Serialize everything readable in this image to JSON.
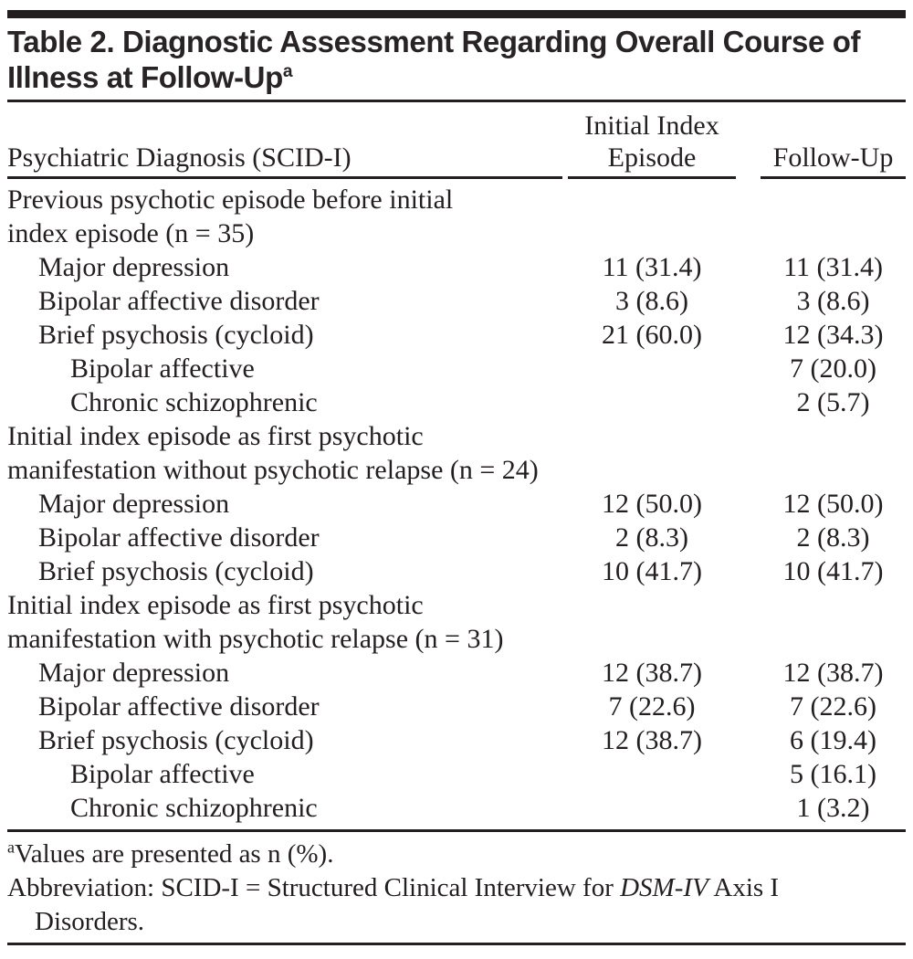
{
  "title": {
    "line1": "Table 2. Diagnostic Assessment Regarding Overall Course of",
    "line2": "Illness at Follow-Up",
    "superscript": "a"
  },
  "header": {
    "col1": "Psychiatric Diagnosis (SCID-I)",
    "col2_line1": "Initial Index",
    "col2_line2": "Episode",
    "col3": "Follow-Up"
  },
  "rows": [
    {
      "type": "section",
      "indent": 0,
      "label": "Previous psychotic episode before initial",
      "initial_index": "",
      "follow_up": ""
    },
    {
      "type": "section",
      "indent": 0,
      "label": "index episode (n = 35)",
      "initial_index": "",
      "follow_up": ""
    },
    {
      "type": "item",
      "indent": 1,
      "label": "Major depression",
      "initial_index": "11 (31.4)",
      "follow_up": "11 (31.4)"
    },
    {
      "type": "item",
      "indent": 1,
      "label": "Bipolar affective disorder",
      "initial_index": "3 (8.6)",
      "follow_up": "3 (8.6)"
    },
    {
      "type": "item",
      "indent": 1,
      "label": "Brief psychosis (cycloid)",
      "initial_index": "21 (60.0)",
      "follow_up": "12 (34.3)"
    },
    {
      "type": "item",
      "indent": 2,
      "label": "Bipolar affective",
      "initial_index": "",
      "follow_up": "7 (20.0)"
    },
    {
      "type": "item",
      "indent": 2,
      "label": "Chronic schizophrenic",
      "initial_index": "",
      "follow_up": "2 (5.7)"
    },
    {
      "type": "section",
      "indent": 0,
      "label": "Initial index episode as first psychotic",
      "initial_index": "",
      "follow_up": ""
    },
    {
      "type": "section",
      "indent": 0,
      "label": "manifestation without psychotic relapse (n = 24)",
      "initial_index": "",
      "follow_up": ""
    },
    {
      "type": "item",
      "indent": 1,
      "label": "Major depression",
      "initial_index": "12 (50.0)",
      "follow_up": "12 (50.0)"
    },
    {
      "type": "item",
      "indent": 1,
      "label": "Bipolar affective disorder",
      "initial_index": "2 (8.3)",
      "follow_up": "2 (8.3)"
    },
    {
      "type": "item",
      "indent": 1,
      "label": "Brief psychosis (cycloid)",
      "initial_index": "10 (41.7)",
      "follow_up": "10 (41.7)"
    },
    {
      "type": "section",
      "indent": 0,
      "label": "Initial index episode as first psychotic",
      "initial_index": "",
      "follow_up": ""
    },
    {
      "type": "section",
      "indent": 0,
      "label": "manifestation with psychotic relapse (n = 31)",
      "initial_index": "",
      "follow_up": ""
    },
    {
      "type": "item",
      "indent": 1,
      "label": "Major depression",
      "initial_index": "12 (38.7)",
      "follow_up": "12 (38.7)"
    },
    {
      "type": "item",
      "indent": 1,
      "label": "Bipolar affective disorder",
      "initial_index": "7 (22.6)",
      "follow_up": "7 (22.6)"
    },
    {
      "type": "item",
      "indent": 1,
      "label": "Brief psychosis (cycloid)",
      "initial_index": "12 (38.7)",
      "follow_up": "6 (19.4)"
    },
    {
      "type": "item",
      "indent": 2,
      "label": "Bipolar affective",
      "initial_index": "",
      "follow_up": "5 (16.1)"
    },
    {
      "type": "item",
      "indent": 2,
      "label": "Chronic schizophrenic",
      "initial_index": "",
      "follow_up": "1 (3.2)"
    }
  ],
  "footnotes": {
    "a_marker": "a",
    "a_text": "Values are presented as n (%).",
    "abbrev_pre": "Abbreviation: SCID-I = Structured Clinical Interview for ",
    "abbrev_italic": "DSM-IV",
    "abbrev_post": " Axis I",
    "abbrev_line2": "Disorders."
  },
  "colors": {
    "text": "#231f20",
    "rule": "#231f20",
    "background": "#ffffff"
  }
}
